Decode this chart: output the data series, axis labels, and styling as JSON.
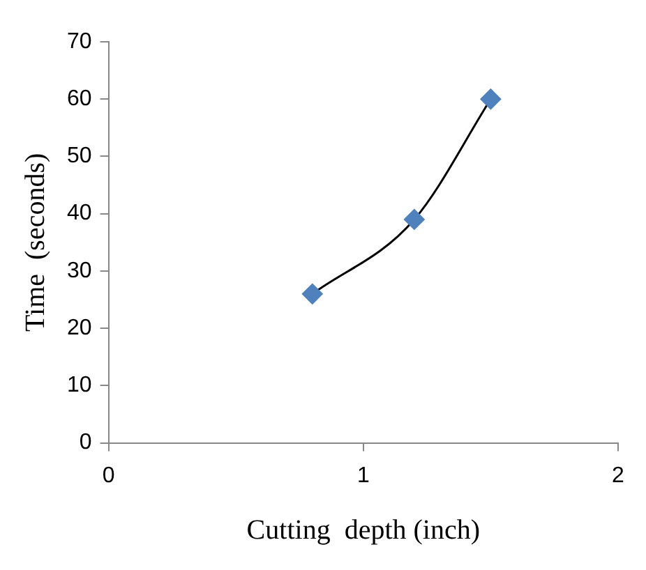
{
  "chart_data": {
    "type": "scatter",
    "xlabel": "Cutting  depth (inch)",
    "ylabel": "Time  (seconds)",
    "xlim": [
      0,
      2
    ],
    "xticks": [
      0,
      1,
      2
    ],
    "ylim": [
      0,
      70
    ],
    "yticks": [
      0,
      10,
      20,
      30,
      40,
      50,
      60,
      70
    ],
    "grid": false,
    "legend": false,
    "series": [
      {
        "type": "line",
        "x": [
          0.8,
          1.2,
          1.5
        ],
        "values": [
          26,
          39,
          60
        ],
        "color": "#000000",
        "marker": "none"
      },
      {
        "x": [
          0.8,
          1.2,
          1.5
        ],
        "values": [
          26,
          39,
          60
        ],
        "color": "#4f81bd",
        "marker": "diamond"
      }
    ]
  }
}
